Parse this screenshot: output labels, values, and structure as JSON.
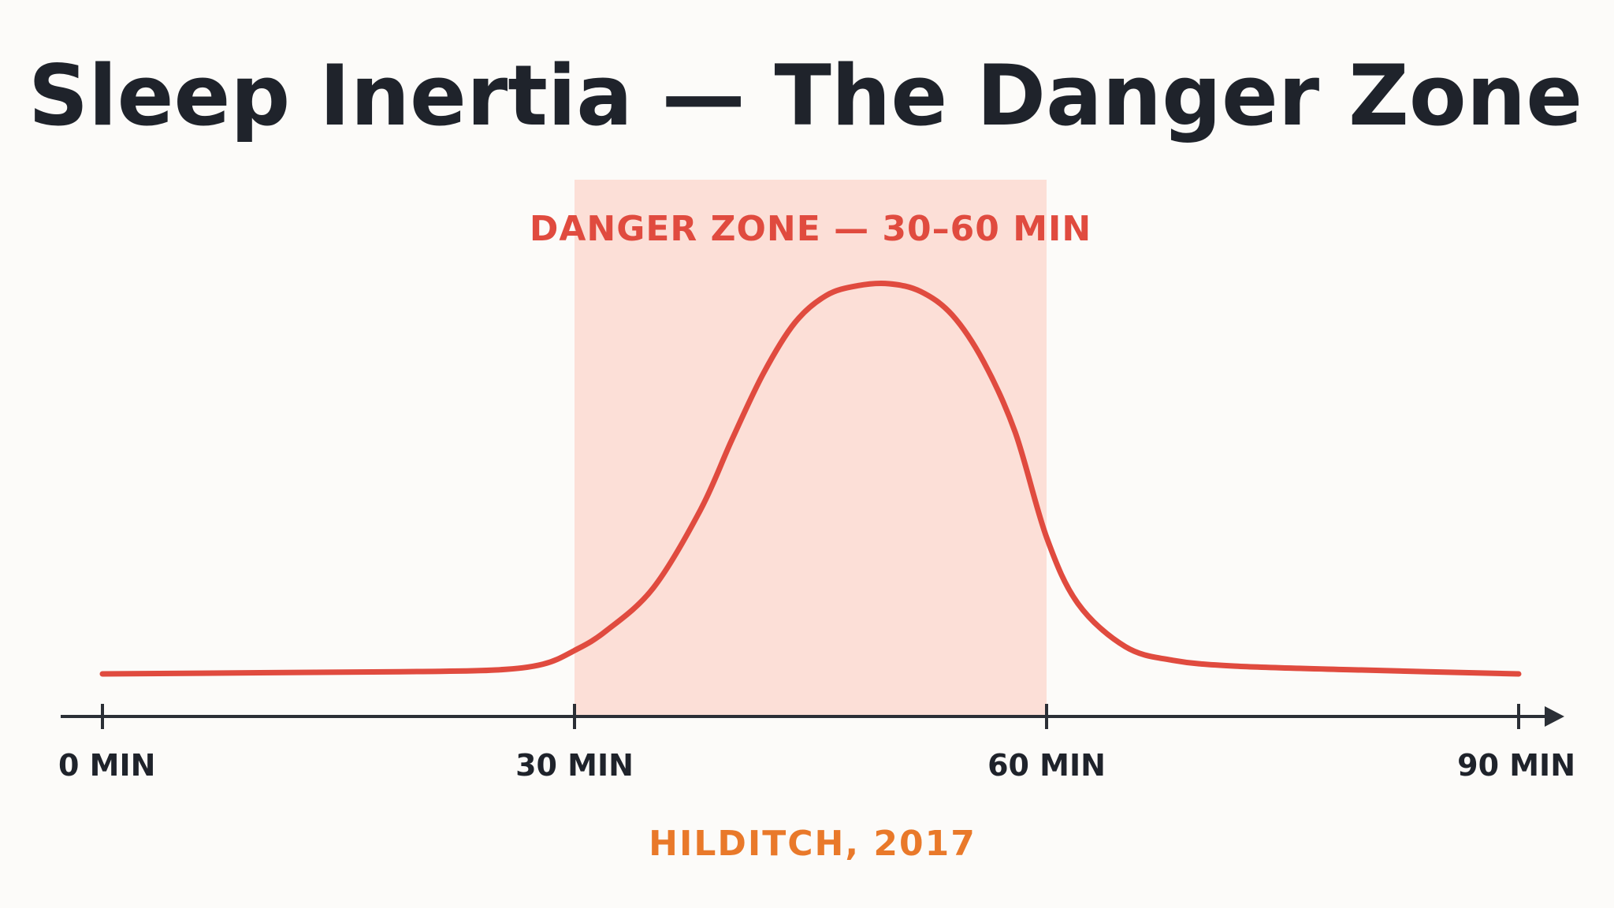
{
  "chart_data": {
    "type": "line",
    "title": "Sleep Inertia — The Danger Zone",
    "xlabel": "",
    "ylabel": "",
    "xlim": [
      0,
      90
    ],
    "ylim": [
      0,
      1
    ],
    "x_ticks": [
      {
        "value": 0,
        "label": "0 MIN"
      },
      {
        "value": 30,
        "label": "30 MIN"
      },
      {
        "value": 60,
        "label": "60 MIN"
      },
      {
        "value": 90,
        "label": "90 MIN"
      }
    ],
    "highlight_region": {
      "x_start": 30,
      "x_end": 60,
      "label": "DANGER ZONE — 30–60 MIN"
    },
    "series": [
      {
        "x": [
          0,
          10,
          20,
          25,
          28,
          30,
          32,
          35,
          38,
          40,
          42,
          44,
          46,
          48,
          50,
          52,
          54,
          56,
          58,
          60,
          62,
          65,
          68,
          72,
          80,
          90
        ],
        "y": [
          0.0,
          0.003,
          0.006,
          0.01,
          0.025,
          0.06,
          0.11,
          0.22,
          0.42,
          0.6,
          0.77,
          0.9,
          0.97,
          0.995,
          1.0,
          0.98,
          0.92,
          0.8,
          0.62,
          0.35,
          0.18,
          0.07,
          0.035,
          0.02,
          0.01,
          0.0
        ],
        "color": "#e04b3f"
      }
    ],
    "source": "HILDITCH, 2017",
    "grid": false,
    "legend": "none"
  },
  "colors": {
    "background": "#fcfbf9",
    "title": "#1f232b",
    "line": "#e04b3f",
    "zone_fill": "#fcd9d1",
    "zone_label": "#e04b3f",
    "axis": "#2b2f36",
    "source": "#e9792a"
  }
}
